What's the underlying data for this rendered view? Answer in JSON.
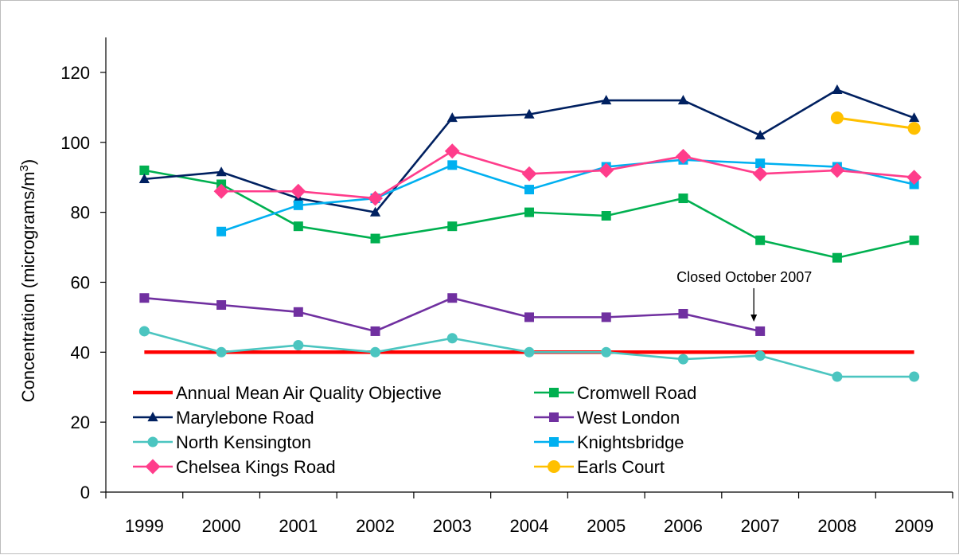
{
  "chart_data": {
    "type": "line",
    "title": "",
    "xlabel": "",
    "ylabel": {
      "main": "Concentration (micrograms/m",
      "sup": "3",
      "tail": ")"
    },
    "ylim": [
      0,
      130
    ],
    "yticks": [
      0,
      20,
      40,
      60,
      80,
      100,
      120
    ],
    "categories": [
      "1999",
      "2000",
      "2001",
      "2002",
      "2003",
      "2004",
      "2005",
      "2006",
      "2007",
      "2008",
      "2009"
    ],
    "grid": false,
    "legend_position": "bottom-left",
    "series": [
      {
        "name": "Annual Mean Air Quality Objective",
        "color": "#ff0000",
        "marker": "none",
        "values": [
          40,
          40,
          40,
          40,
          40,
          40,
          40,
          40,
          40,
          40,
          40
        ]
      },
      {
        "name": "Cromwell Road",
        "color": "#00b050",
        "marker": "square",
        "values": [
          92,
          88,
          76,
          72.5,
          76,
          80,
          79,
          84,
          72,
          67,
          72
        ]
      },
      {
        "name": "Marylebone Road",
        "color": "#002060",
        "marker": "triangle",
        "values": [
          89.5,
          91.5,
          84,
          80,
          107,
          108,
          112,
          112,
          102,
          115,
          107
        ]
      },
      {
        "name": "West London",
        "color": "#7030a0",
        "marker": "square",
        "values": [
          55.5,
          53.5,
          51.5,
          46,
          55.5,
          50,
          50,
          51,
          46,
          null,
          null
        ]
      },
      {
        "name": "North Kensington",
        "color": "#4bc5c0",
        "marker": "circle",
        "values": [
          46,
          40,
          42,
          40,
          44,
          40,
          40,
          38,
          39,
          33,
          33
        ]
      },
      {
        "name": "Knightsbridge",
        "color": "#00b0f0",
        "marker": "square",
        "values": [
          null,
          74.5,
          82,
          84,
          93.5,
          86.5,
          93,
          95,
          94,
          93,
          88
        ]
      },
      {
        "name": "Chelsea Kings Road",
        "color": "#ff3d8b",
        "marker": "diamond",
        "values": [
          null,
          86,
          86,
          84,
          97.5,
          91,
          92,
          96,
          91,
          92,
          90
        ]
      },
      {
        "name": "Earls Court",
        "color": "#ffc000",
        "marker": "circle",
        "values": [
          null,
          null,
          null,
          null,
          null,
          null,
          null,
          null,
          null,
          107,
          104
        ]
      }
    ],
    "annotations": [
      {
        "text": "Closed October 2007",
        "category": "2007",
        "value": 46
      }
    ]
  }
}
